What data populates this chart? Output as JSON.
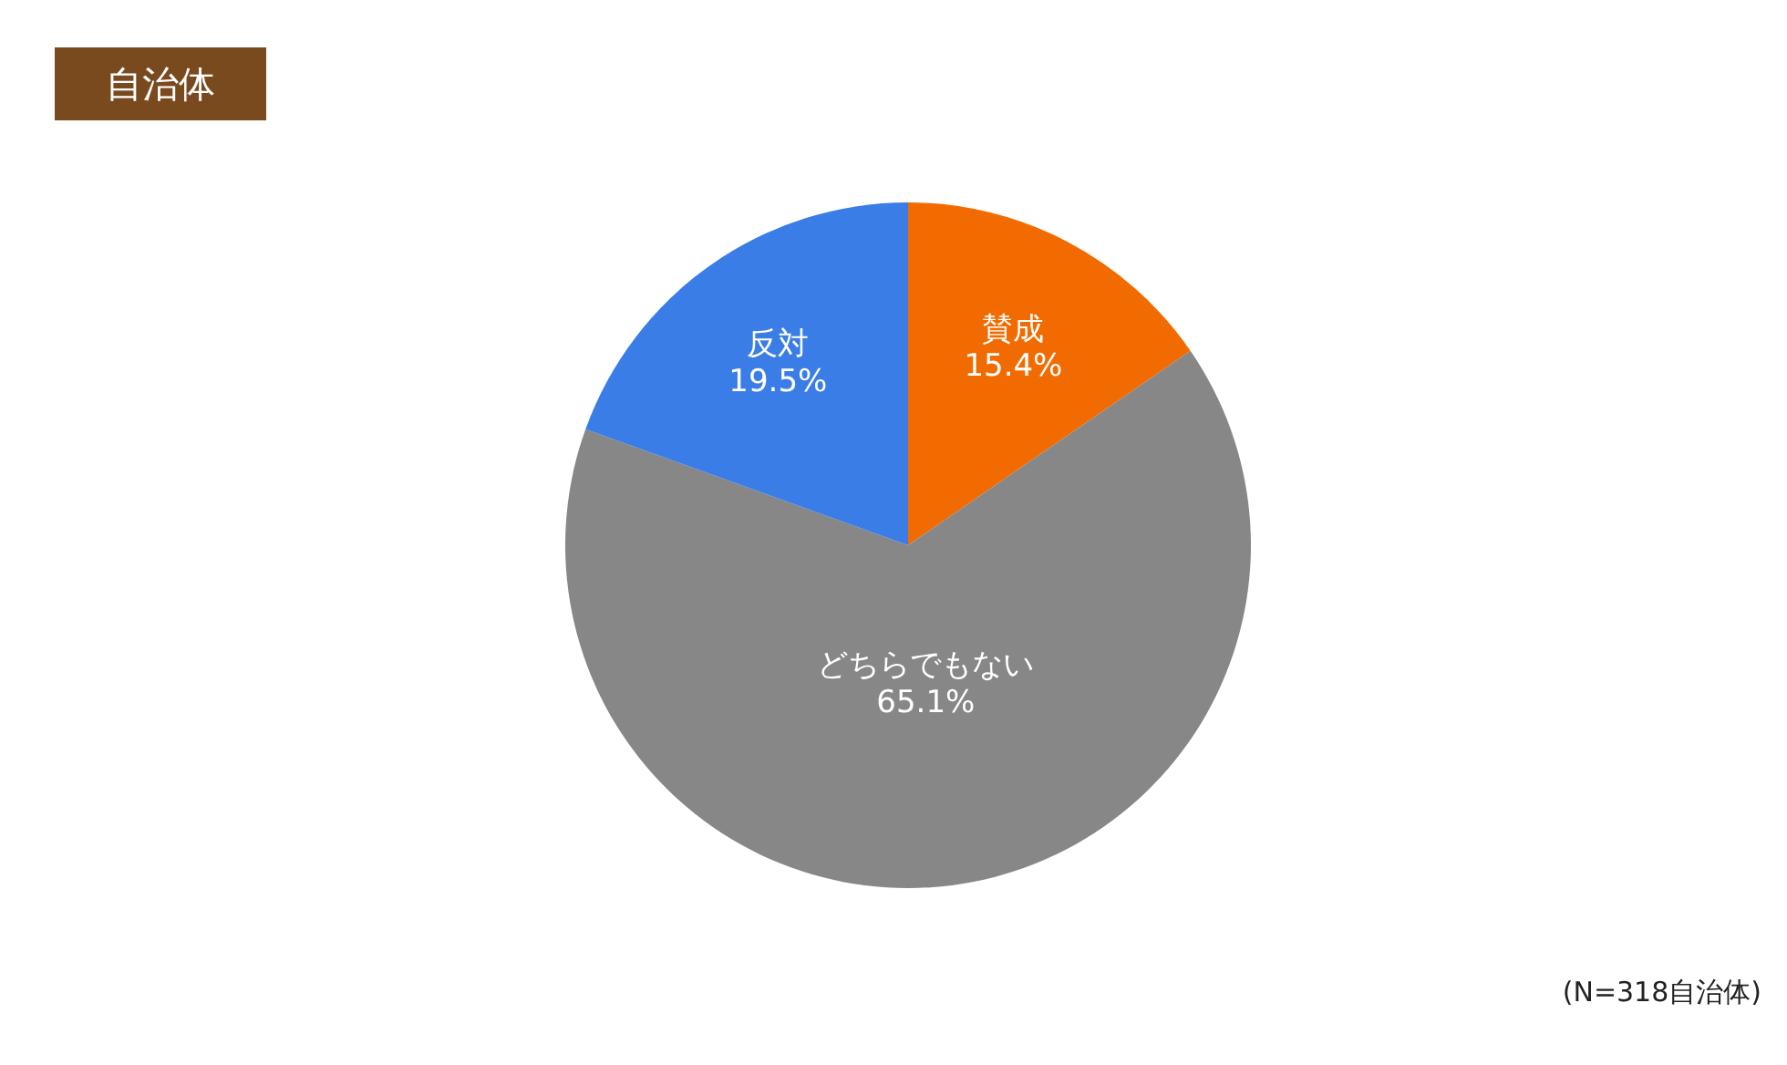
{
  "chart_data": {
    "type": "pie",
    "title": "自治体",
    "categories": [
      "賛成",
      "どちらでもない",
      "反対"
    ],
    "values": [
      15.4,
      65.1,
      19.5
    ],
    "value_labels": [
      "15.4%",
      "65.1%",
      "19.5%"
    ],
    "colors": [
      "#f26b00",
      "#878787",
      "#3a7de6"
    ],
    "annotations": [
      "(N=318自治体)"
    ]
  }
}
